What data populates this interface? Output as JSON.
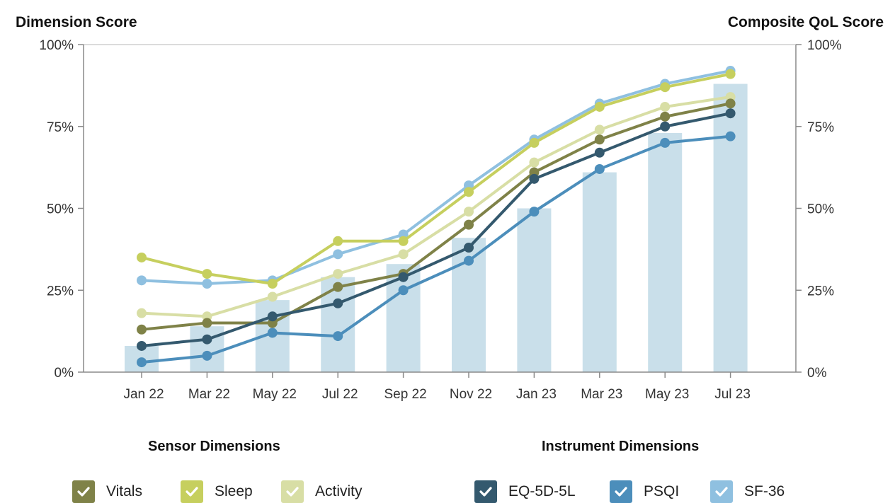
{
  "chart_data": {
    "type": "line",
    "ylabel_left": "Dimension Score",
    "ylabel_right": "Composite QoL Score",
    "categories": [
      "Jan 22",
      "Mar 22",
      "May 22",
      "Jul 22",
      "Sep 22",
      "Nov 22",
      "Jan 23",
      "Mar 23",
      "May 23",
      "Jul 23"
    ],
    "y_ticks": [
      "0%",
      "25%",
      "50%",
      "75%",
      "100%"
    ],
    "ylim": [
      0,
      100
    ],
    "grid": false,
    "bars": {
      "axis": "right",
      "color": "#c9dfea",
      "values": [
        8,
        14,
        22,
        29,
        33,
        41,
        50,
        61,
        73,
        88
      ]
    },
    "series": [
      {
        "name": "SF-36",
        "color": "#8fc0e0",
        "values": [
          28,
          27,
          28,
          36,
          42,
          57,
          71,
          82,
          88,
          92
        ]
      },
      {
        "name": "Sleep",
        "color": "#c6cf5e",
        "values": [
          35,
          30,
          27,
          40,
          40,
          55,
          70,
          81,
          87,
          91
        ]
      },
      {
        "name": "Activity",
        "color": "#d8dea5",
        "values": [
          18,
          17,
          23,
          30,
          36,
          49,
          64,
          74,
          81,
          84
        ]
      },
      {
        "name": "Vitals",
        "color": "#7f8248",
        "values": [
          13,
          15,
          15,
          26,
          30,
          45,
          61,
          71,
          78,
          82
        ]
      },
      {
        "name": "EQ-5D-5L",
        "color": "#34596e",
        "values": [
          8,
          10,
          17,
          21,
          29,
          38,
          59,
          67,
          75,
          79
        ]
      },
      {
        "name": "PSQI",
        "color": "#4c8ebb",
        "values": [
          3,
          5,
          12,
          11,
          25,
          34,
          49,
          62,
          70,
          72
        ]
      }
    ]
  },
  "legend": {
    "sensor_title": "Sensor Dimensions",
    "instrument_title": "Instrument Dimensions",
    "sensor_items": [
      {
        "label": "Vitals",
        "color": "#7f8248"
      },
      {
        "label": "Sleep",
        "color": "#c6cf5e"
      },
      {
        "label": "Activity",
        "color": "#d8dea5"
      }
    ],
    "instrument_items": [
      {
        "label": "EQ-5D-5L",
        "color": "#34596e"
      },
      {
        "label": "PSQI",
        "color": "#4c8ebb"
      },
      {
        "label": "SF-36",
        "color": "#8fc0e0"
      }
    ]
  }
}
